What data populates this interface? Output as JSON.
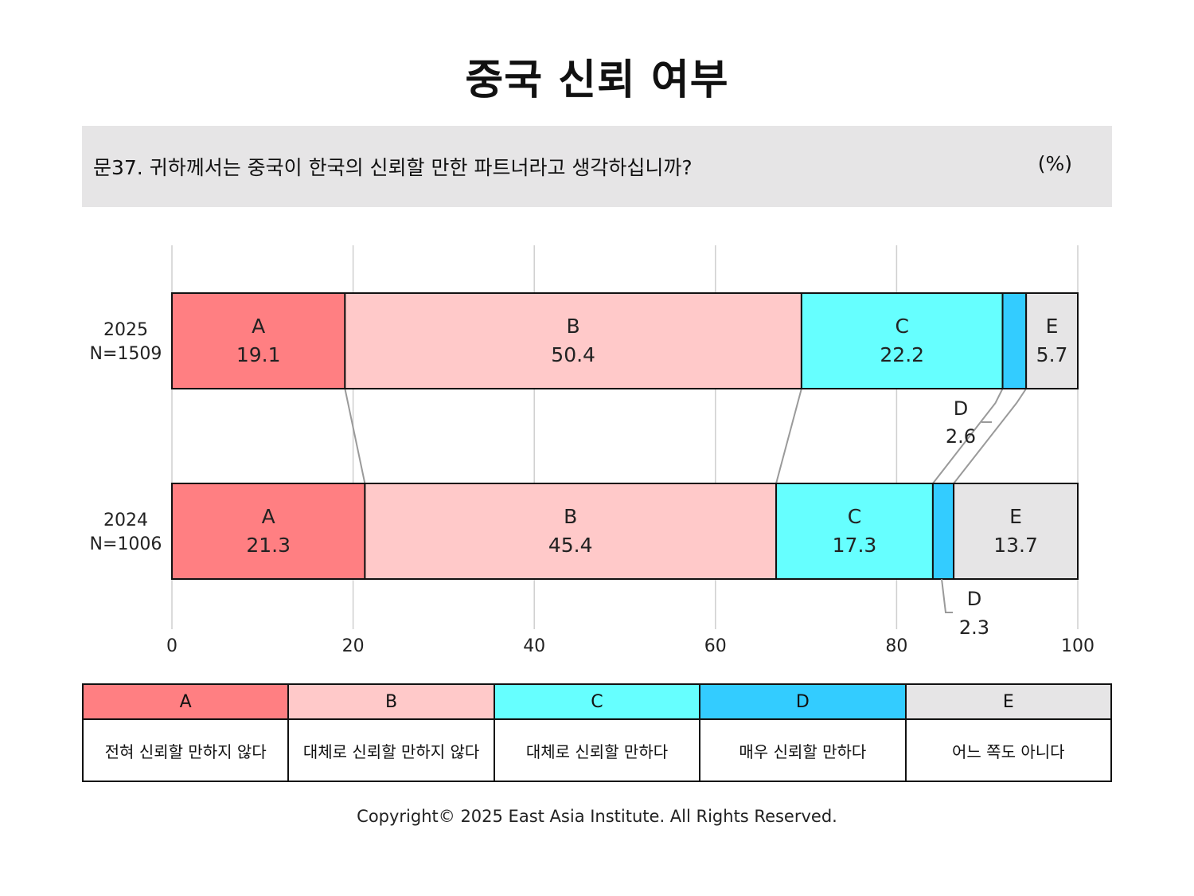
{
  "title": "중국 신뢰 여부",
  "question": "문37. 귀하께서는 중국이 한국의 신뢰할 만한 파트너라고 생각하십니까?",
  "unit": "(%)",
  "chart_data": {
    "type": "bar",
    "orientation": "horizontal",
    "stacked": true,
    "xlim": [
      0,
      100
    ],
    "xticks": [
      0,
      20,
      40,
      60,
      80,
      100
    ],
    "grid": true,
    "rows": [
      {
        "year": "2025",
        "n": "N=1509"
      },
      {
        "year": "2024",
        "n": "N=1006"
      }
    ],
    "series": [
      {
        "name": "A",
        "color": "#ff7f82",
        "values": [
          19.1,
          21.3
        ]
      },
      {
        "name": "B",
        "color": "#ffc9c9",
        "values": [
          50.4,
          45.4
        ]
      },
      {
        "name": "C",
        "color": "#66ffff",
        "values": [
          22.2,
          17.3
        ]
      },
      {
        "name": "D",
        "color": "#33ccff",
        "values": [
          2.6,
          2.3
        ]
      },
      {
        "name": "E",
        "color": "#e6e5e6",
        "values": [
          5.7,
          13.7
        ]
      }
    ]
  },
  "legend": [
    {
      "key": "A",
      "label": "전혀 신뢰할 만하지 않다",
      "color": "#ff7f82"
    },
    {
      "key": "B",
      "label": "대체로 신뢰할 만하지 않다",
      "color": "#ffc9c9"
    },
    {
      "key": "C",
      "label": "대체로 신뢰할 만하다",
      "color": "#66ffff"
    },
    {
      "key": "D",
      "label": "매우 신뢰할 만하다",
      "color": "#33ccff"
    },
    {
      "key": "E",
      "label": "어느 쪽도 아니다",
      "color": "#e6e5e6"
    }
  ],
  "copyright": "Copyright© 2025 East Asia Institute. All Rights Reserved."
}
